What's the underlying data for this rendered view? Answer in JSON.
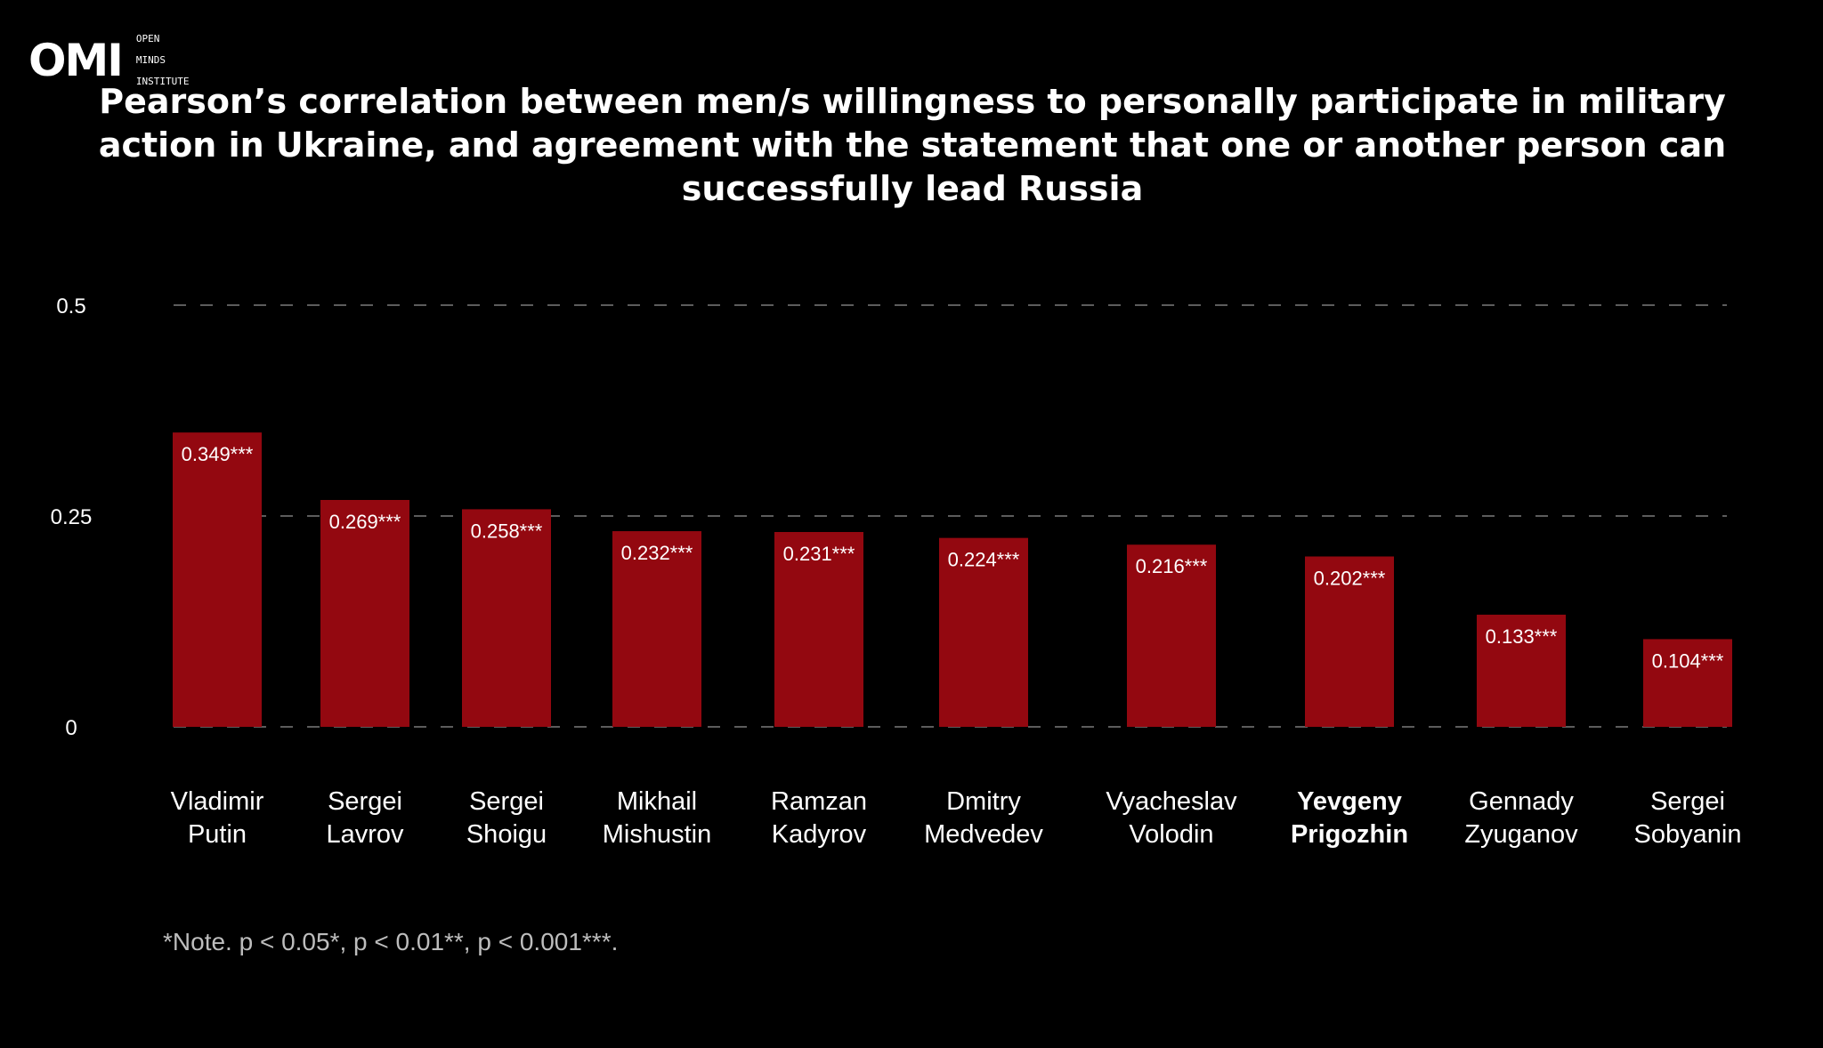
{
  "logo": {
    "mark": "OMI",
    "line1": "OPEN",
    "line2": "MINDS",
    "line3": "INSTITUTE"
  },
  "chart_data": {
    "type": "bar",
    "title": "Pearson’s correlation between men/s willingness to personally participate in military action in  Ukraine, and agreement with the statement that one or another person can successfully lead Russia",
    "categories": [
      [
        "Vladimir",
        "Putin"
      ],
      [
        "Sergei",
        "Lavrov"
      ],
      [
        "Sergei",
        "Shoigu"
      ],
      [
        "Mikhail",
        "Mishustin"
      ],
      [
        "Ramzan",
        "Kadyrov"
      ],
      [
        "Dmitry",
        "Medvedev"
      ],
      [
        "Vyacheslav",
        "Volodin"
      ],
      [
        "Yevgeny",
        "Prigozhin"
      ],
      [
        "Gennady",
        "Zyuganov"
      ],
      [
        "Sergei",
        "Sobyanin"
      ]
    ],
    "values": [
      0.349,
      0.269,
      0.258,
      0.232,
      0.231,
      0.224,
      0.216,
      0.202,
      0.133,
      0.104
    ],
    "data_labels": [
      "0.349***",
      "0.269***",
      "0.258***",
      "0.232***",
      "0.231***",
      "0.224***",
      "0.216***",
      "0.202***",
      "0.133***",
      "0.104***"
    ],
    "highlighted_category": "Yevgeny Prigozhin",
    "y_ticks": [
      {
        "value": 0.5,
        "label": "0.5"
      },
      {
        "value": 0.25,
        "label": "0.25"
      },
      {
        "value": 0,
        "label": "0"
      }
    ],
    "ylim": [
      0,
      0.5
    ],
    "grid": true,
    "xlabel": "",
    "ylabel": ""
  },
  "colors": {
    "bar": "#930810",
    "background": "#000000",
    "text": "#ffffff",
    "grid": "#7a7a7a",
    "note": "#bdbdbd"
  },
  "note": "*Note. p < 0.05*, p < 0.01**, p < 0.001***."
}
